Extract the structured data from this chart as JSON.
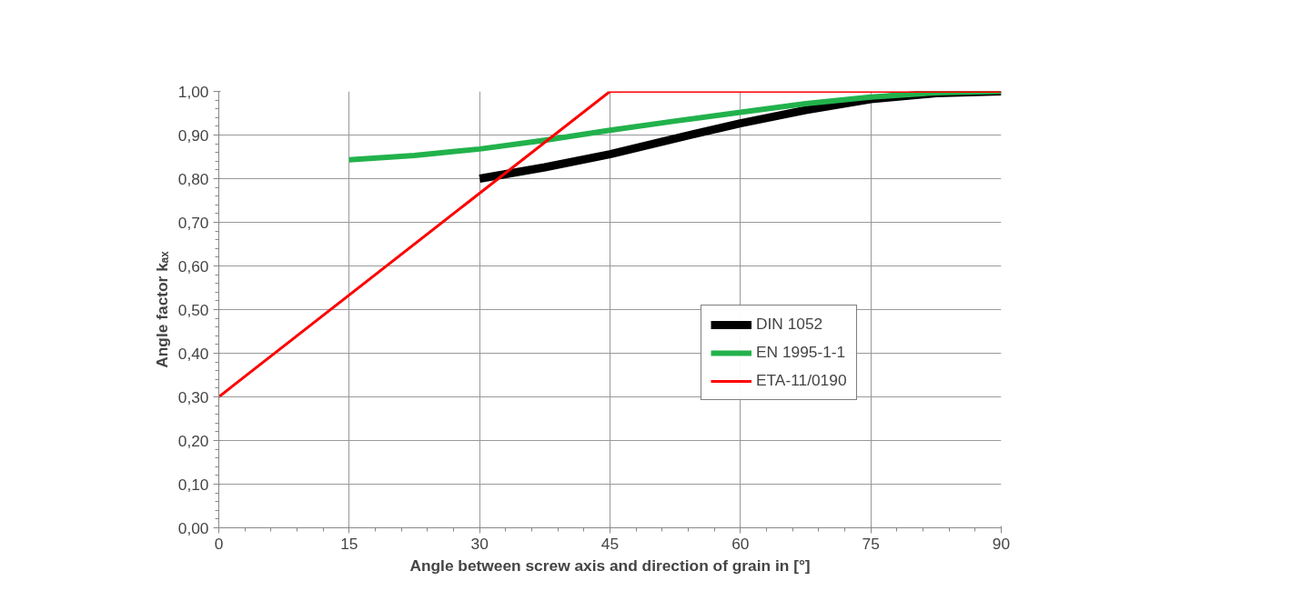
{
  "chart_data": {
    "type": "line",
    "xlabel": "Angle between screw axis and direction of grain in [°]",
    "ylabel": "Angle factor kₐₓ",
    "xlim": [
      0,
      90
    ],
    "xticks": [
      0,
      15,
      30,
      45,
      60,
      75,
      90
    ],
    "ylim": [
      0,
      1.0
    ],
    "yticks": [
      {
        "value": 0,
        "label": "0,00"
      },
      {
        "value": 0.1,
        "label": "0,10"
      },
      {
        "value": 0.2,
        "label": "0,20"
      },
      {
        "value": 0.3,
        "label": "0,30"
      },
      {
        "value": 0.4,
        "label": "0,40"
      },
      {
        "value": 0.5,
        "label": "0,50"
      },
      {
        "value": 0.6,
        "label": "0,60"
      },
      {
        "value": 0.7,
        "label": "0,70"
      },
      {
        "value": 0.8,
        "label": "0,80"
      },
      {
        "value": 0.9,
        "label": "0,90"
      },
      {
        "value": 1.0,
        "label": "1,00"
      }
    ],
    "grid": true,
    "legend": "right",
    "marker": "none",
    "line_style": "solid",
    "series": [
      {
        "name": "DIN 1052",
        "color": "#000000",
        "x": [
          30,
          37.5,
          45,
          52.5,
          60,
          67.5,
          75,
          82.5,
          90
        ],
        "values": [
          0.8,
          0.826,
          0.856,
          0.892,
          0.927,
          0.957,
          0.982,
          0.996,
          1.0
        ]
      },
      {
        "name": "EN 1995-1-1",
        "color": "#22b24c",
        "x": [
          15,
          22.5,
          30,
          37.5,
          45,
          52.5,
          60,
          67.5,
          75,
          82.5,
          90
        ],
        "values": [
          0.843,
          0.853,
          0.868,
          0.888,
          0.911,
          0.932,
          0.952,
          0.972,
          0.987,
          0.997,
          1.0
        ]
      },
      {
        "name": "ETA-11/0190",
        "color": "#ff0000",
        "x": [
          0,
          45,
          90
        ],
        "values": [
          0.3,
          1.0,
          1.0
        ]
      }
    ]
  }
}
